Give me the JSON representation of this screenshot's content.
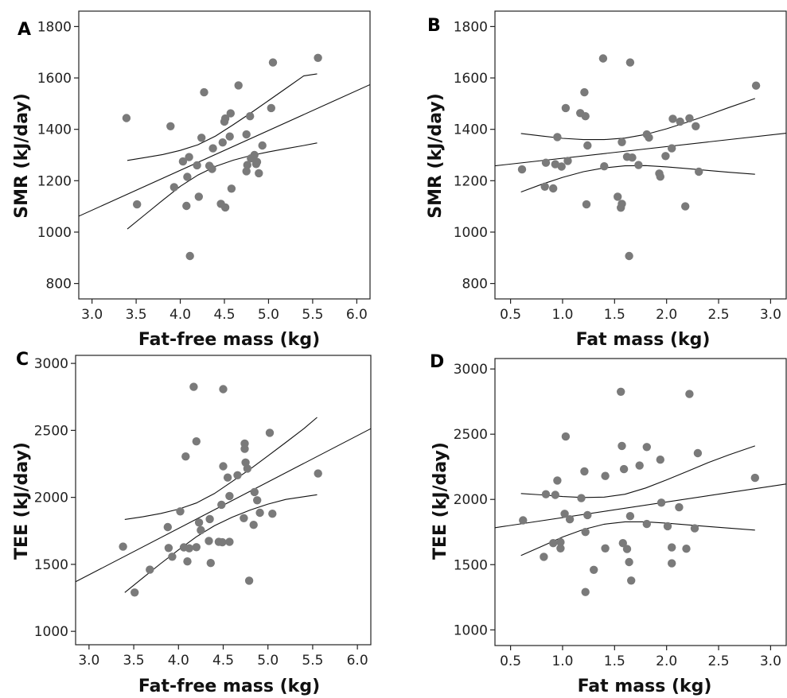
{
  "figure": {
    "background": "#ffffff",
    "point_color": "#7a7a7a",
    "line_color": "#111111"
  },
  "chart_data": [
    {
      "panel": "A",
      "type": "scatter",
      "xlabel": "Fat-free mass (kg)",
      "ylabel": "SMR (kJ/day)",
      "xlim": [
        2.85,
        6.15
      ],
      "ylim": [
        740,
        1860
      ],
      "xticks": [
        3.0,
        3.5,
        4.0,
        4.5,
        5.0,
        5.5,
        6.0
      ],
      "yticks": [
        800,
        1000,
        1200,
        1400,
        1600,
        1800
      ],
      "xtick_decimals": 1,
      "fit": {
        "x": [
          2.85,
          6.15
        ],
        "y": [
          1062,
          1574
        ],
        "ci_lower": {
          "x": [
            3.4,
            3.6,
            3.8,
            4.0,
            4.2,
            4.4,
            4.6,
            4.8,
            5.0,
            5.2,
            5.4,
            5.55
          ],
          "y": [
            1012,
            1068,
            1124,
            1178,
            1222,
            1256,
            1280,
            1298,
            1312,
            1325,
            1337,
            1347
          ]
        },
        "ci_upper": {
          "x": [
            3.4,
            3.6,
            3.8,
            4.0,
            4.2,
            4.4,
            4.6,
            4.8,
            5.0,
            5.2,
            5.4,
            5.55
          ],
          "y": [
            1279,
            1290,
            1302,
            1318,
            1340,
            1374,
            1418,
            1464,
            1512,
            1560,
            1608,
            1616
          ]
        }
      },
      "points": [
        [
          3.39,
          1444
        ],
        [
          3.51,
          1108
        ],
        [
          3.89,
          1412
        ],
        [
          3.93,
          1175
        ],
        [
          4.03,
          1275
        ],
        [
          4.07,
          1102
        ],
        [
          4.08,
          1215
        ],
        [
          4.1,
          1292
        ],
        [
          4.11,
          907
        ],
        [
          4.19,
          1260
        ],
        [
          4.21,
          1138
        ],
        [
          4.24,
          1367
        ],
        [
          4.27,
          1544
        ],
        [
          4.33,
          1258
        ],
        [
          4.36,
          1246
        ],
        [
          4.37,
          1326
        ],
        [
          4.46,
          1110
        ],
        [
          4.48,
          1349
        ],
        [
          4.5,
          1430
        ],
        [
          4.51,
          1442
        ],
        [
          4.51,
          1096
        ],
        [
          4.56,
          1372
        ],
        [
          4.57,
          1462
        ],
        [
          4.58,
          1169
        ],
        [
          4.66,
          1571
        ],
        [
          4.75,
          1237
        ],
        [
          4.75,
          1380
        ],
        [
          4.76,
          1261
        ],
        [
          4.79,
          1451
        ],
        [
          4.8,
          1287
        ],
        [
          4.84,
          1300
        ],
        [
          4.86,
          1265
        ],
        [
          4.87,
          1273
        ],
        [
          4.89,
          1229
        ],
        [
          4.93,
          1337
        ],
        [
          5.03,
          1483
        ],
        [
          5.05,
          1660
        ],
        [
          5.56,
          1678
        ]
      ]
    },
    {
      "panel": "B",
      "type": "scatter",
      "xlabel": "Fat mass (kg)",
      "ylabel": "SMR (kJ/day)",
      "xlim": [
        0.35,
        3.15
      ],
      "ylim": [
        740,
        1860
      ],
      "xticks": [
        0.5,
        1.0,
        1.5,
        2.0,
        2.5,
        3.0
      ],
      "yticks": [
        800,
        1000,
        1200,
        1400,
        1600,
        1800
      ],
      "xtick_decimals": 1,
      "fit": {
        "x": [
          0.35,
          3.15
        ],
        "y": [
          1258,
          1385
        ],
        "ci_lower": {
          "x": [
            0.6,
            0.8,
            1.0,
            1.2,
            1.4,
            1.6,
            1.8,
            2.0,
            2.2,
            2.4,
            2.6,
            2.85
          ],
          "y": [
            1156,
            1186,
            1213,
            1235,
            1250,
            1258,
            1259,
            1254,
            1247,
            1240,
            1233,
            1225
          ]
        },
        "ci_upper": {
          "x": [
            0.6,
            0.8,
            1.0,
            1.2,
            1.4,
            1.6,
            1.8,
            2.0,
            2.2,
            2.4,
            2.6,
            2.85
          ],
          "y": [
            1384,
            1374,
            1365,
            1360,
            1360,
            1366,
            1380,
            1402,
            1428,
            1456,
            1485,
            1520
          ]
        }
      },
      "points": [
        [
          0.61,
          1244
        ],
        [
          0.83,
          1177
        ],
        [
          0.84,
          1270
        ],
        [
          0.91,
          1170
        ],
        [
          0.93,
          1264
        ],
        [
          0.95,
          1370
        ],
        [
          0.99,
          1255
        ],
        [
          1.03,
          1483
        ],
        [
          1.05,
          1277
        ],
        [
          1.17,
          1463
        ],
        [
          1.21,
          1544
        ],
        [
          1.22,
          1451
        ],
        [
          1.23,
          1108
        ],
        [
          1.24,
          1337
        ],
        [
          1.39,
          1676
        ],
        [
          1.4,
          1256
        ],
        [
          1.53,
          1138
        ],
        [
          1.56,
          1095
        ],
        [
          1.57,
          1110
        ],
        [
          1.57,
          1350
        ],
        [
          1.62,
          1293
        ],
        [
          1.64,
          907
        ],
        [
          1.65,
          1660
        ],
        [
          1.67,
          1290
        ],
        [
          1.73,
          1261
        ],
        [
          1.81,
          1380
        ],
        [
          1.83,
          1368
        ],
        [
          1.93,
          1228
        ],
        [
          1.94,
          1216
        ],
        [
          1.99,
          1296
        ],
        [
          2.05,
          1326
        ],
        [
          2.06,
          1441
        ],
        [
          2.13,
          1430
        ],
        [
          2.18,
          1100
        ],
        [
          2.22,
          1443
        ],
        [
          2.28,
          1412
        ],
        [
          2.31,
          1235
        ],
        [
          2.86,
          1570
        ]
      ]
    },
    {
      "panel": "C",
      "type": "scatter",
      "xlabel": "Fat-free mass (kg)",
      "ylabel": "TEE (kJ/day)",
      "xlim": [
        2.85,
        6.15
      ],
      "ylim": [
        900,
        3060
      ],
      "xticks": [
        3.0,
        3.5,
        4.0,
        4.5,
        5.0,
        5.5,
        6.0
      ],
      "yticks": [
        1000,
        1500,
        2000,
        2500,
        3000
      ],
      "xtick_decimals": 1,
      "fit": {
        "x": [
          2.85,
          6.15
        ],
        "y": [
          1370,
          2513
        ],
        "ci_lower": {
          "x": [
            3.4,
            3.6,
            3.8,
            4.0,
            4.2,
            4.4,
            4.6,
            4.8,
            5.0,
            5.2,
            5.4,
            5.55
          ],
          "y": [
            1290,
            1398,
            1505,
            1608,
            1706,
            1788,
            1852,
            1905,
            1950,
            1985,
            2005,
            2020
          ]
        },
        "ci_upper": {
          "x": [
            3.4,
            3.6,
            3.8,
            4.0,
            4.2,
            4.4,
            4.6,
            4.8,
            5.0,
            5.2,
            5.4,
            5.55
          ],
          "y": [
            1835,
            1855,
            1880,
            1912,
            1958,
            2028,
            2118,
            2210,
            2310,
            2410,
            2512,
            2597
          ]
        }
      },
      "points": [
        [
          3.38,
          1632
        ],
        [
          3.51,
          1290
        ],
        [
          3.68,
          1460
        ],
        [
          3.88,
          1778
        ],
        [
          3.89,
          1622
        ],
        [
          3.93,
          1557
        ],
        [
          4.02,
          1895
        ],
        [
          4.06,
          1627
        ],
        [
          4.08,
          2305
        ],
        [
          4.1,
          1522
        ],
        [
          4.12,
          1620
        ],
        [
          4.17,
          2825
        ],
        [
          4.2,
          2418
        ],
        [
          4.2,
          1628
        ],
        [
          4.23,
          1812
        ],
        [
          4.25,
          1755
        ],
        [
          4.34,
          1675
        ],
        [
          4.35,
          1838
        ],
        [
          4.36,
          1510
        ],
        [
          4.45,
          1668
        ],
        [
          4.48,
          1945
        ],
        [
          4.49,
          1665
        ],
        [
          4.5,
          2808
        ],
        [
          4.5,
          2232
        ],
        [
          4.55,
          2148
        ],
        [
          4.57,
          2010
        ],
        [
          4.57,
          1668
        ],
        [
          4.66,
          2165
        ],
        [
          4.73,
          1845
        ],
        [
          4.74,
          2402
        ],
        [
          4.74,
          2362
        ],
        [
          4.75,
          2260
        ],
        [
          4.77,
          2215
        ],
        [
          4.79,
          1378
        ],
        [
          4.84,
          1795
        ],
        [
          4.85,
          2040
        ],
        [
          4.88,
          1978
        ],
        [
          4.91,
          1885
        ],
        [
          5.02,
          2482
        ],
        [
          5.05,
          1878
        ],
        [
          5.56,
          2178
        ]
      ]
    },
    {
      "panel": "D",
      "type": "scatter",
      "xlabel": "Fat mass (kg)",
      "ylabel": "TEE (kJ/day)",
      "xlim": [
        0.35,
        3.15
      ],
      "ylim": [
        880,
        3080
      ],
      "xticks": [
        0.5,
        1.0,
        1.5,
        2.0,
        2.5,
        3.0
      ],
      "yticks": [
        1000,
        1500,
        2000,
        2500,
        3000
      ],
      "xtick_decimals": 1,
      "fit": {
        "x": [
          0.35,
          3.15
        ],
        "y": [
          1783,
          2118
        ],
        "ci_lower": {
          "x": [
            0.6,
            0.8,
            1.0,
            1.2,
            1.4,
            1.6,
            1.8,
            2.0,
            2.2,
            2.4,
            2.6,
            2.85
          ],
          "y": [
            1570,
            1640,
            1712,
            1770,
            1810,
            1828,
            1828,
            1818,
            1805,
            1792,
            1780,
            1765
          ]
        },
        "ci_upper": {
          "x": [
            0.6,
            0.8,
            1.0,
            1.2,
            1.4,
            1.6,
            1.8,
            2.0,
            2.2,
            2.4,
            2.6,
            2.85
          ],
          "y": [
            2045,
            2035,
            2022,
            2015,
            2018,
            2040,
            2088,
            2150,
            2215,
            2282,
            2342,
            2410
          ]
        }
      },
      "points": [
        [
          0.62,
          1840
        ],
        [
          0.82,
          1560
        ],
        [
          0.84,
          2040
        ],
        [
          0.91,
          1665
        ],
        [
          0.93,
          2035
        ],
        [
          0.95,
          2145
        ],
        [
          0.98,
          1672
        ],
        [
          0.98,
          1625
        ],
        [
          1.02,
          1890
        ],
        [
          1.03,
          2482
        ],
        [
          1.07,
          1848
        ],
        [
          1.18,
          2010
        ],
        [
          1.21,
          2215
        ],
        [
          1.22,
          1750
        ],
        [
          1.22,
          1290
        ],
        [
          1.24,
          1880
        ],
        [
          1.3,
          1460
        ],
        [
          1.41,
          1625
        ],
        [
          1.41,
          2180
        ],
        [
          1.56,
          2825
        ],
        [
          1.57,
          2410
        ],
        [
          1.58,
          1665
        ],
        [
          1.59,
          2232
        ],
        [
          1.62,
          1620
        ],
        [
          1.64,
          1520
        ],
        [
          1.65,
          1872
        ],
        [
          1.66,
          1378
        ],
        [
          1.74,
          2260
        ],
        [
          1.81,
          1812
        ],
        [
          1.81,
          2402
        ],
        [
          1.94,
          2305
        ],
        [
          1.95,
          1975
        ],
        [
          2.01,
          1795
        ],
        [
          2.05,
          1632
        ],
        [
          2.05,
          1510
        ],
        [
          2.12,
          1940
        ],
        [
          2.19,
          1622
        ],
        [
          2.22,
          2808
        ],
        [
          2.27,
          1778
        ],
        [
          2.3,
          2355
        ],
        [
          2.85,
          2165
        ]
      ]
    }
  ]
}
